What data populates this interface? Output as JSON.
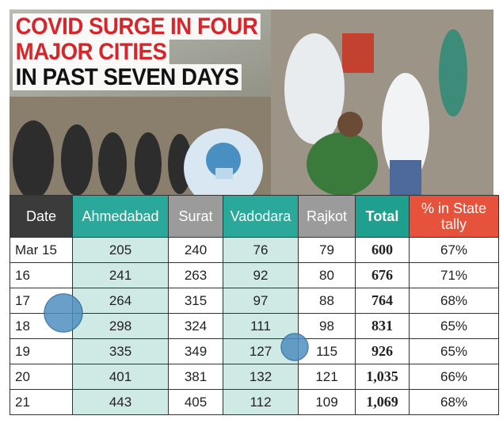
{
  "header": {
    "title": [
      "COVID SURGE IN FOUR",
      "MAJOR CITIES",
      "IN PAST SEVEN DAYS"
    ]
  },
  "table": {
    "columns": [
      "Date",
      "Ahmedabad",
      "Surat",
      "Vadodara",
      "Rajkot",
      "Total",
      "% in State tally"
    ],
    "rows": [
      [
        "Mar 15",
        "205",
        "240",
        "76",
        "79",
        "600",
        "67%"
      ],
      [
        "16",
        "241",
        "263",
        "92",
        "80",
        "676",
        "71%"
      ],
      [
        "17",
        "264",
        "315",
        "97",
        "88",
        "764",
        "68%"
      ],
      [
        "18",
        "298",
        "324",
        "111",
        "98",
        "831",
        "65%"
      ],
      [
        "19",
        "335",
        "349",
        "127",
        "115",
        "926",
        "65%"
      ],
      [
        "20",
        "401",
        "381",
        "132",
        "121",
        "1,035",
        "66%"
      ],
      [
        "21",
        "443",
        "405",
        "112",
        "109",
        "1,069",
        "68%"
      ]
    ]
  }
}
